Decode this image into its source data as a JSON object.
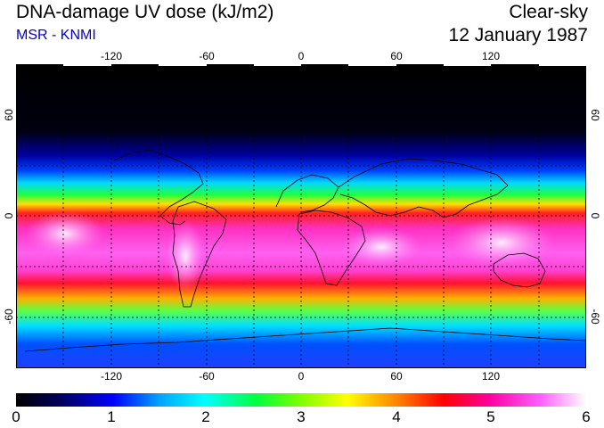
{
  "header": {
    "title": "DNA-damage UV dose (kJ/m2)",
    "source": "MSR - KNMI",
    "mode": "Clear-sky",
    "date": "12 January 1987"
  },
  "map": {
    "lon_labels": [
      "-120",
      "-60",
      "0",
      "60",
      "120"
    ],
    "lat_labels": [
      "60",
      "0",
      "-60"
    ],
    "lon_ticks": [
      -120,
      -60,
      0,
      60,
      120
    ],
    "lat_ticks": [
      60,
      0,
      -60
    ],
    "lon_range": [
      -180,
      180
    ],
    "lat_range": [
      90,
      -90
    ],
    "description_colors": {
      "night": "#000000",
      "low": "#0000ff",
      "mid": "#00ff00",
      "high": "#ff0000",
      "peak": "#ff44ff",
      "max": "#ffffff"
    }
  },
  "colorbar": {
    "labels": [
      "0",
      "1",
      "2",
      "3",
      "4",
      "5",
      "6"
    ],
    "min": 0,
    "max": 6
  }
}
